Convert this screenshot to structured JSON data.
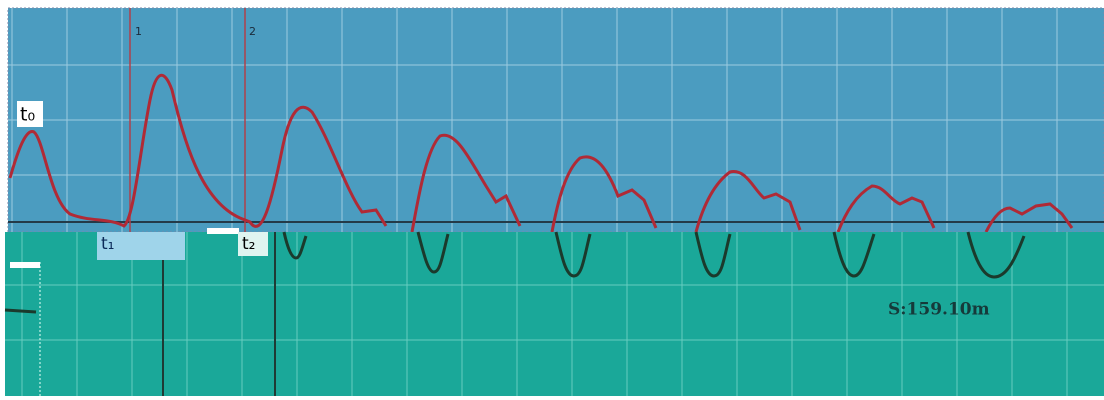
{
  "markers": {
    "t0": "t₀",
    "t1": "t₁",
    "t2": "t₂",
    "cursor1": "1",
    "cursor2": "2"
  },
  "readout": "S:159.10m"
}
